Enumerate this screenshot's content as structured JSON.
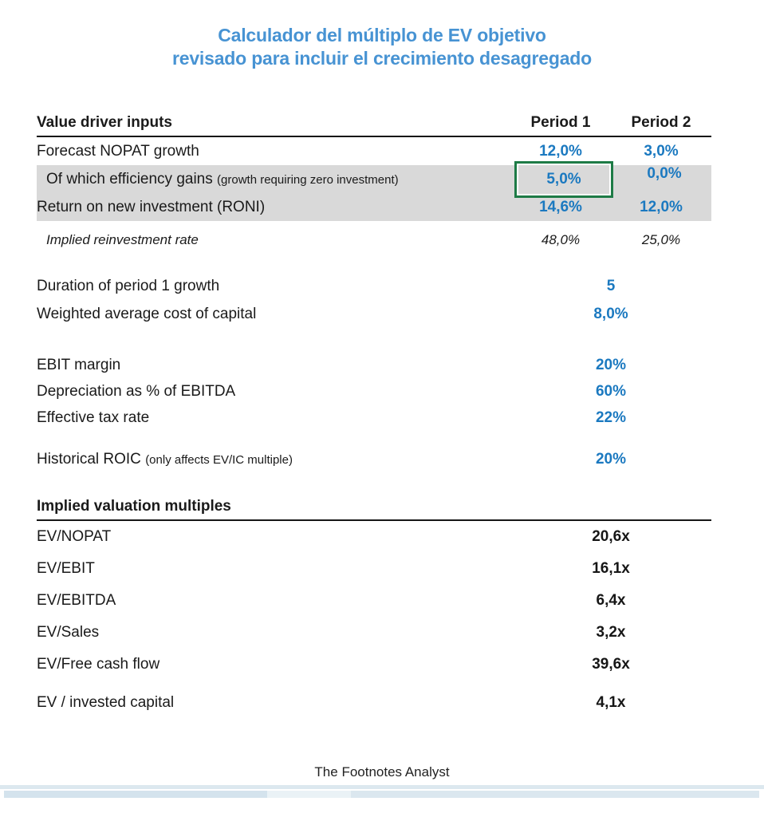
{
  "title": {
    "line1": "Calculador del múltiplo de EV objetivo",
    "line2": "revisado para incluir el crecimiento desagregado"
  },
  "value_drivers": {
    "heading": "Value driver inputs",
    "columns": [
      "Period 1",
      "Period 2"
    ],
    "rows": [
      {
        "label": "Forecast NOPAT growth",
        "p1": "12,0%",
        "p2": "3,0%"
      },
      {
        "label": "Of which efficiency gains",
        "label_note": "(growth requiring zero investment)",
        "p1": "5,0%",
        "p2": "0,0%"
      },
      {
        "label": "Return on new investment (RONI)",
        "p1": "14,6%",
        "p2": "12,0%"
      },
      {
        "label": "Implied reinvestment rate",
        "p1": "48,0%",
        "p2": "25,0%"
      }
    ],
    "singles": [
      {
        "label": "Duration of period 1 growth",
        "value": "5"
      },
      {
        "label": "Weighted average cost of capital",
        "value": "8,0%"
      },
      {
        "label": "EBIT margin",
        "value": "20%"
      },
      {
        "label": "Depreciation as % of EBITDA",
        "value": "60%"
      },
      {
        "label": "Effective tax rate",
        "value": "22%"
      },
      {
        "label": "Historical ROIC",
        "label_note": "(only affects EV/IC multiple)",
        "value": "20%"
      }
    ]
  },
  "multiples": {
    "heading": "Implied valuation multiples",
    "rows": [
      {
        "label": "EV/NOPAT",
        "value": "20,6x"
      },
      {
        "label": "EV/EBIT",
        "value": "16,1x"
      },
      {
        "label": "EV/EBITDA",
        "value": "6,4x"
      },
      {
        "label": "EV/Sales",
        "value": "3,2x"
      },
      {
        "label": "EV/Free cash flow",
        "value": "39,6x"
      },
      {
        "label": "EV / invested capital",
        "value": "4,1x"
      }
    ]
  },
  "footer": {
    "credit": "The Footnotes Analyst"
  },
  "colors": {
    "title_blue": "#4793d3",
    "input_blue": "#1b79c0",
    "row_shade_gray": "#d9d9d9",
    "selection_green": "#1e7b46"
  }
}
